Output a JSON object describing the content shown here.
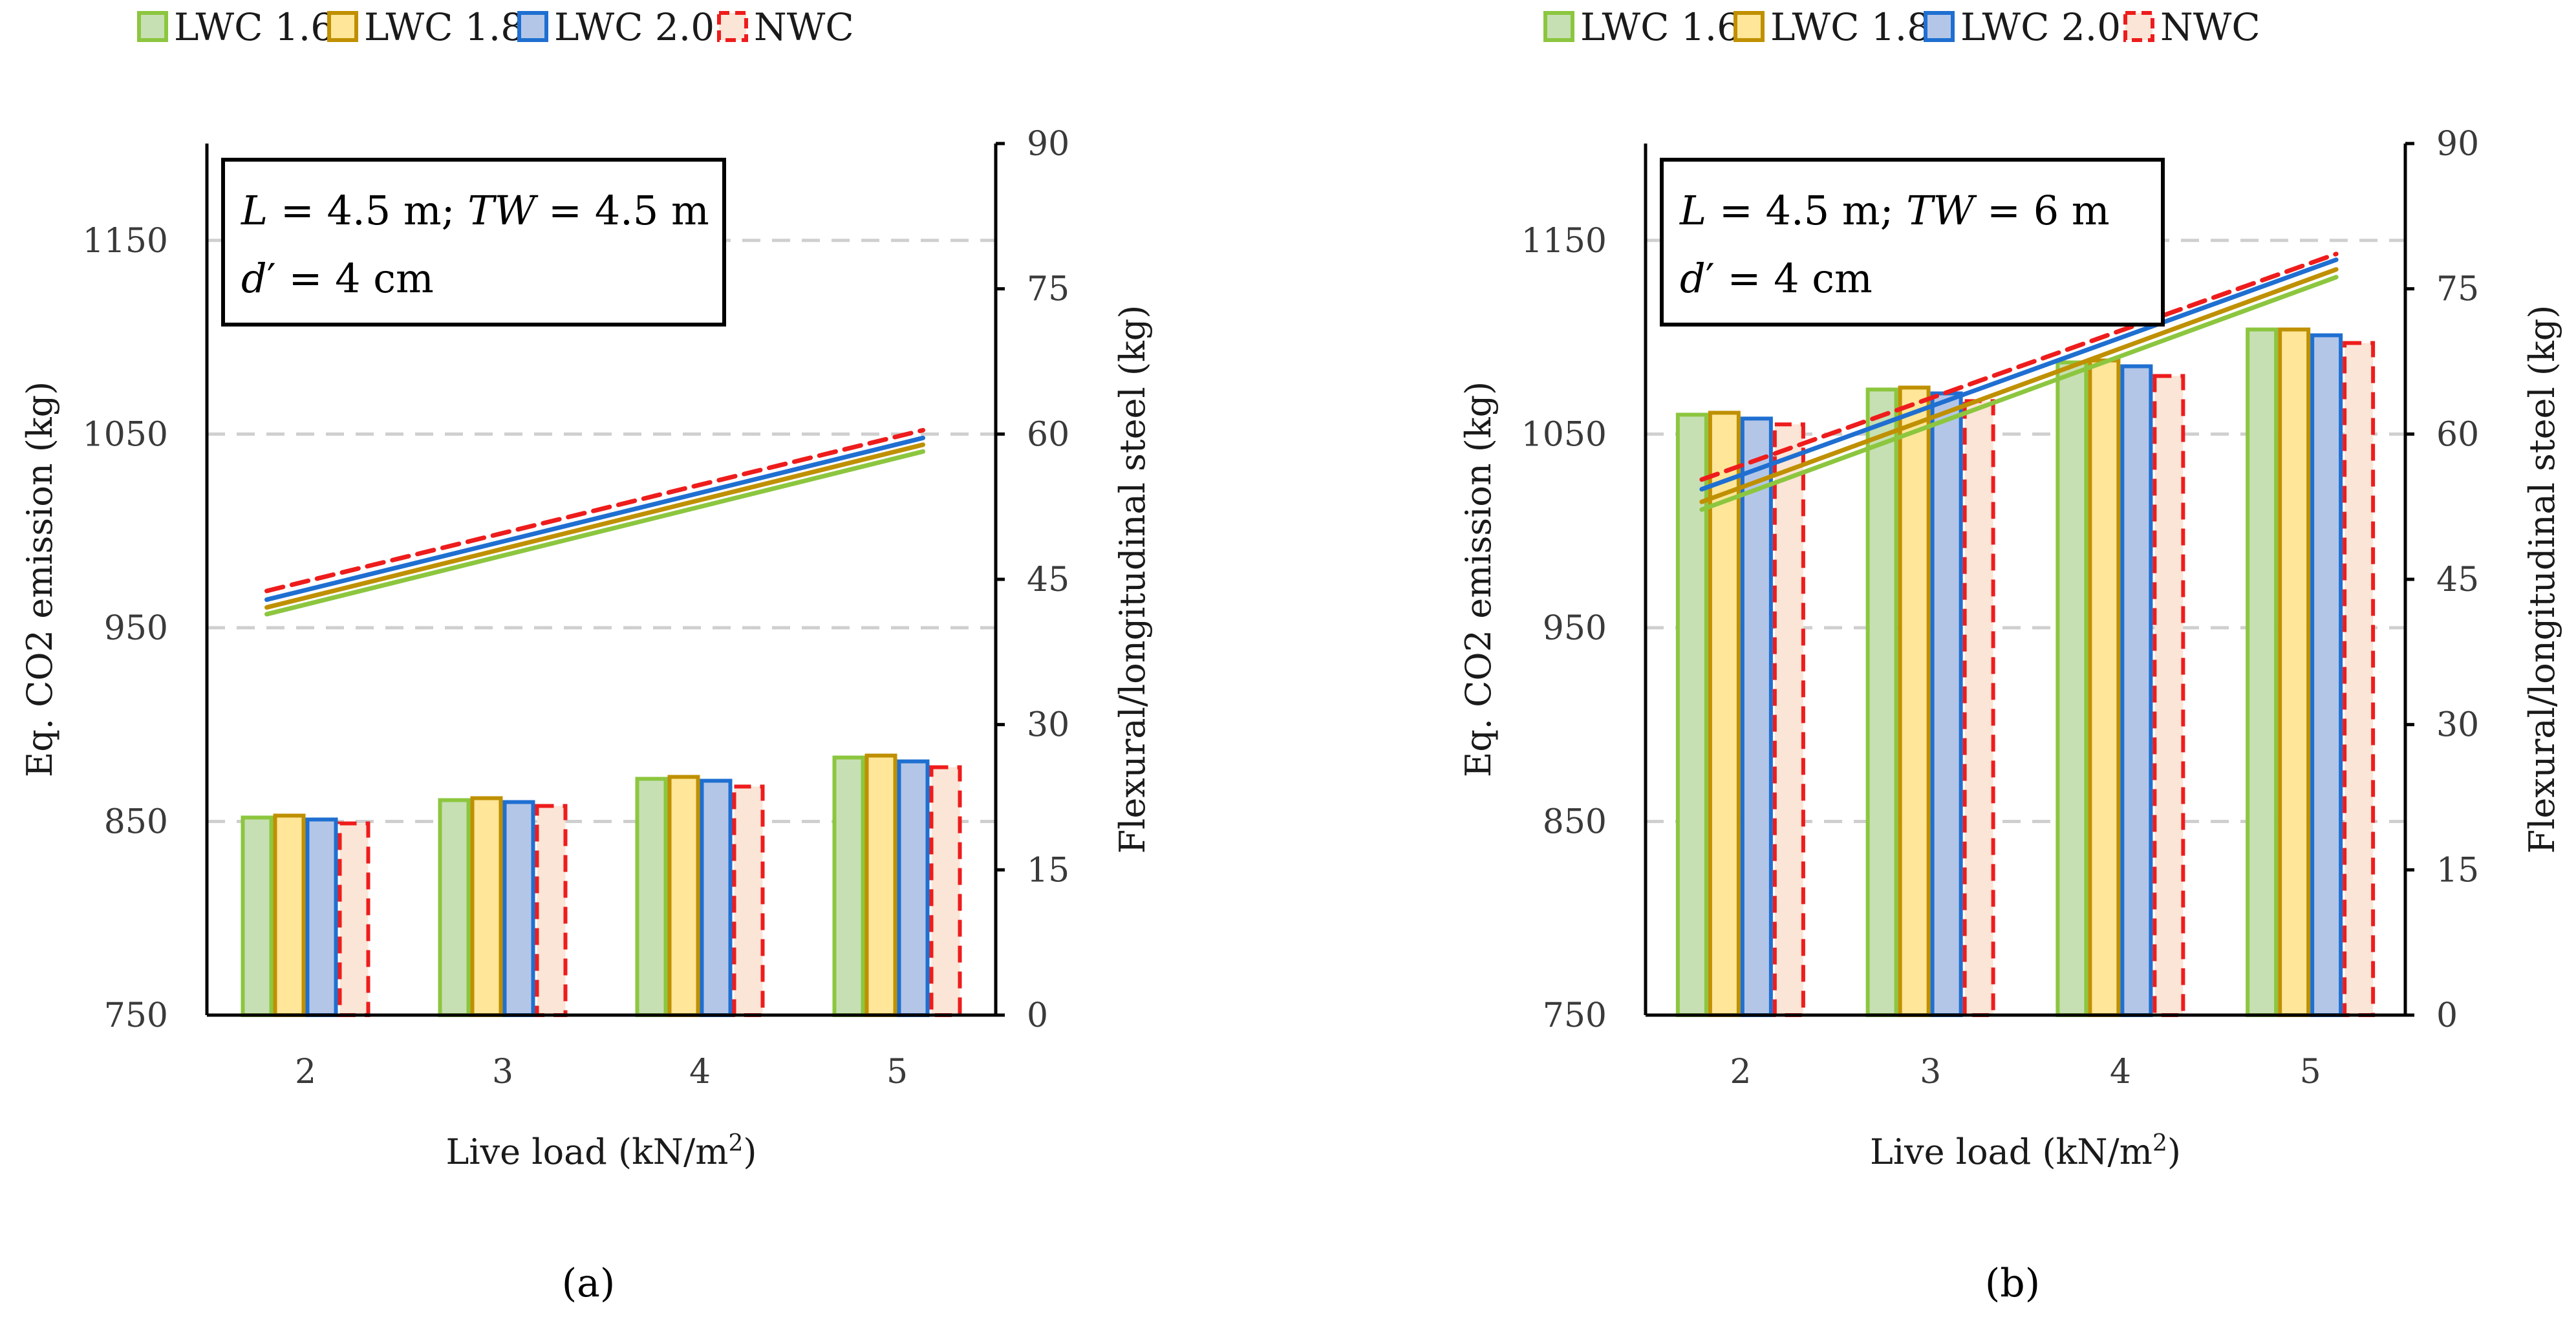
{
  "colors": {
    "LWC 1.6": {
      "fill": "#c6e0b4",
      "stroke": "#8cc63f",
      "line": "#8cc63f"
    },
    "LWC 1.8": {
      "fill": "#ffe699",
      "stroke": "#bf9000",
      "line": "#bf9000"
    },
    "LWC 2.0": {
      "fill": "#b4c6e7",
      "stroke": "#1f6fd1",
      "line": "#1f6fd1"
    },
    "NWC": {
      "fill": "#fbe5d6",
      "stroke": "#ee1c1c",
      "line": "#ee1c1c"
    }
  },
  "chart_data": [
    {
      "type": "bar+line",
      "panel_label": "(a)",
      "annotation": {
        "line1": {
          "L": "L",
          "eq1": " = 4.5 m; ",
          "TW": "TW",
          "eq2": " = 4.5 m"
        },
        "line2": {
          "d": "d",
          "eq": "′ = 4 cm"
        }
      },
      "legend": [
        "LWC 1.6",
        "LWC 1.8",
        "LWC 2.0",
        "NWC"
      ],
      "categories": [
        "2",
        "3",
        "4",
        "5"
      ],
      "xlabel": "Live load (kN/m",
      "xlabel_sup": "2",
      "xlabel_end": ")",
      "ylabel": "Eq. CO2 emission (kg)",
      "y2label": "Flexural/longitudinal steel (kg)",
      "ylim": [
        750,
        1200
      ],
      "yticks": [
        750,
        850,
        950,
        1050,
        1150
      ],
      "y2lim": [
        0,
        90
      ],
      "y2ticks": [
        0,
        15,
        30,
        45,
        60,
        75,
        90
      ],
      "grid_y": [
        850,
        950,
        1050,
        1150
      ],
      "bar_series": [
        {
          "name": "LWC 1.6",
          "values": [
            852,
            861,
            872,
            883
          ]
        },
        {
          "name": "LWC 1.8",
          "values": [
            853,
            862,
            873,
            884
          ]
        },
        {
          "name": "LWC 2.0",
          "values": [
            851,
            860,
            871,
            881
          ]
        },
        {
          "name": "NWC",
          "values": [
            849,
            858,
            868,
            878
          ]
        }
      ],
      "line_series": [
        {
          "name": "LWC 1.6",
          "values": [
            41.4,
            58.2
          ]
        },
        {
          "name": "LWC 1.8",
          "values": [
            42.1,
            58.9
          ]
        },
        {
          "name": "LWC 2.0",
          "values": [
            42.9,
            59.6
          ]
        },
        {
          "name": "NWC",
          "values": [
            43.8,
            60.4
          ]
        }
      ]
    },
    {
      "type": "bar+line",
      "panel_label": "(b)",
      "annotation": {
        "line1": {
          "L": "L",
          "eq1": " = 4.5 m; ",
          "TW": "TW",
          "eq2": " = 6 m"
        },
        "line2": {
          "d": "d",
          "eq": "′ = 4 cm"
        }
      },
      "legend": [
        "LWC 1.6",
        "LWC 1.8",
        "LWC 2.0",
        "NWC"
      ],
      "categories": [
        "2",
        "3",
        "4",
        "5"
      ],
      "xlabel": "Live load (kN/m",
      "xlabel_sup": "2",
      "xlabel_end": ")",
      "ylabel": "Eq. CO2 emission (kg)",
      "y2label": "Flexural/longitudinal steel (kg)",
      "ylim": [
        750,
        1200
      ],
      "yticks": [
        750,
        850,
        950,
        1050,
        1150
      ],
      "y2lim": [
        0,
        90
      ],
      "y2ticks": [
        0,
        15,
        30,
        45,
        60,
        75,
        90
      ],
      "grid_y": [
        850,
        950,
        1050,
        1150
      ],
      "bar_series": [
        {
          "name": "LWC 1.6",
          "values": [
            1060,
            1073,
            1087,
            1104
          ]
        },
        {
          "name": "LWC 1.8",
          "values": [
            1061,
            1074,
            1088,
            1104
          ]
        },
        {
          "name": "LWC 2.0",
          "values": [
            1058,
            1071,
            1085,
            1101
          ]
        },
        {
          "name": "NWC",
          "values": [
            1055,
            1067,
            1080,
            1097
          ]
        }
      ],
      "line_series": [
        {
          "name": "LWC 1.6",
          "values": [
            52.2,
            76.2
          ]
        },
        {
          "name": "LWC 1.8",
          "values": [
            53.0,
            77.0
          ]
        },
        {
          "name": "LWC 2.0",
          "values": [
            54.3,
            78.0
          ]
        },
        {
          "name": "NWC",
          "values": [
            55.3,
            78.6
          ]
        }
      ]
    }
  ]
}
